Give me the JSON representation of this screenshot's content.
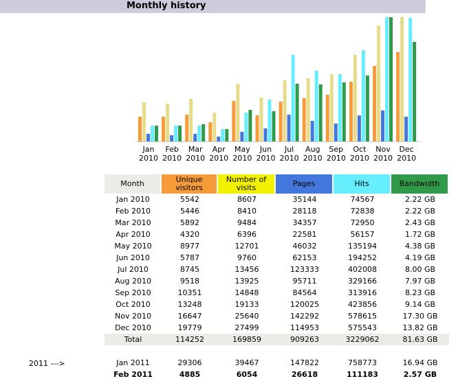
{
  "title": "Monthly history",
  "chart_data": {
    "type": "bar",
    "categories": [
      [
        "Jan",
        "2010"
      ],
      [
        "Feb",
        "2010"
      ],
      [
        "Mar",
        "2010"
      ],
      [
        "Apr",
        "2010"
      ],
      [
        "May",
        "2010"
      ],
      [
        "Jun",
        "2010"
      ],
      [
        "Jul",
        "2010"
      ],
      [
        "Aug",
        "2010"
      ],
      [
        "Sep",
        "2010"
      ],
      [
        "Oct",
        "2010"
      ],
      [
        "Nov",
        "2010"
      ],
      [
        "Dec",
        "2010"
      ]
    ],
    "series": [
      {
        "name": "Unique visitors",
        "color": "#f79a3a",
        "values": [
          5542,
          5446,
          5892,
          4320,
          8977,
          5787,
          8745,
          9518,
          10351,
          13248,
          16647,
          19779
        ]
      },
      {
        "name": "Number of visits",
        "color": "#e6dc8a",
        "values": [
          8607,
          8410,
          9484,
          6396,
          12701,
          9760,
          13456,
          13925,
          14848,
          19133,
          25640,
          27499
        ]
      },
      {
        "name": "Pages",
        "color": "#4477dd",
        "values": [
          35144,
          28118,
          34357,
          22581,
          46032,
          62153,
          123333,
          95711,
          84564,
          120025,
          142292,
          114953
        ]
      },
      {
        "name": "Hits",
        "color": "#66eeff",
        "values": [
          74567,
          72838,
          72950,
          56157,
          135194,
          194252,
          402008,
          329166,
          313916,
          423856,
          578615,
          575543
        ]
      },
      {
        "name": "Bandwidth",
        "color": "#2f9a4a",
        "values": [
          2.22,
          2.22,
          2.43,
          1.72,
          4.38,
          4.19,
          8.0,
          7.97,
          8.23,
          9.14,
          17.3,
          13.82
        ]
      }
    ],
    "scale_max": {
      "visitors_visits": 27499,
      "pages_hits": 578615,
      "bandwidth": 17.3
    }
  },
  "table": {
    "headers": {
      "month": "Month",
      "uv": [
        "Unique",
        "visitors"
      ],
      "nv": [
        "Number of",
        "visits"
      ],
      "pages": "Pages",
      "hits": "Hits",
      "bw": "Bandwidth"
    },
    "rows": [
      [
        "Jan 2010",
        "5542",
        "8607",
        "35144",
        "74567",
        "2.22 GB"
      ],
      [
        "Feb 2010",
        "5446",
        "8410",
        "28118",
        "72838",
        "2.22 GB"
      ],
      [
        "Mar 2010",
        "5892",
        "9484",
        "34357",
        "72950",
        "2.43 GB"
      ],
      [
        "Apr 2010",
        "4320",
        "6396",
        "22581",
        "56157",
        "1.72 GB"
      ],
      [
        "May 2010",
        "8977",
        "12701",
        "46032",
        "135194",
        "4.38 GB"
      ],
      [
        "Jun 2010",
        "5787",
        "9760",
        "62153",
        "194252",
        "4.19 GB"
      ],
      [
        "Jul 2010",
        "8745",
        "13456",
        "123333",
        "402008",
        "8.00 GB"
      ],
      [
        "Aug 2010",
        "9518",
        "13925",
        "95711",
        "329166",
        "7.97 GB"
      ],
      [
        "Sep 2010",
        "10351",
        "14848",
        "84564",
        "313916",
        "8.23 GB"
      ],
      [
        "Oct 2010",
        "13248",
        "19133",
        "120025",
        "423856",
        "9.14 GB"
      ],
      [
        "Nov 2010",
        "16647",
        "25640",
        "142292",
        "578615",
        "17.30 GB"
      ],
      [
        "Dec 2010",
        "19779",
        "27499",
        "114953",
        "575543",
        "13.82 GB"
      ]
    ],
    "total": [
      "Total",
      "114252",
      "169859",
      "909263",
      "3229062",
      "81.63 GB"
    ],
    "extra_rows": [
      [
        "Jan 2011",
        "29306",
        "39467",
        "147822",
        "758773",
        "16.94 GB"
      ],
      [
        "Feb 2011",
        "4885",
        "6054",
        "26618",
        "111183",
        "2.57 GB"
      ]
    ]
  },
  "side_label": "2011 --->"
}
